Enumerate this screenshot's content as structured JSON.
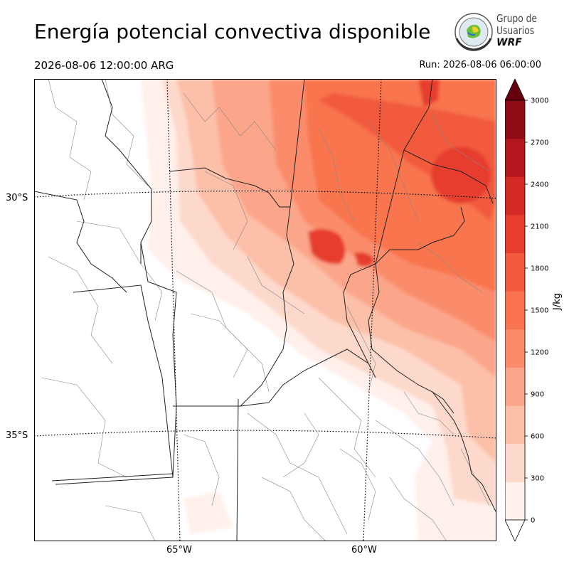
{
  "header": {
    "title": "Energía potencial convectiva disponible",
    "valid_time": "2026-08-06 12:00:00 ARG",
    "run_time": "Run: 2026-08-06 06:00:00"
  },
  "logo": {
    "line1": "Grupo de",
    "line2": "Usuarios",
    "line3": "WRF"
  },
  "map": {
    "lat_labels": [
      "30°S",
      "35°S"
    ],
    "lon_labels": [
      "65°W",
      "60°W"
    ],
    "gridlines": "dotted"
  },
  "colorbar": {
    "unit": "J/kg",
    "ticks": [
      "0",
      "300",
      "600",
      "900",
      "1200",
      "1500",
      "1800",
      "2100",
      "2400",
      "2700",
      "3000"
    ],
    "levels": [
      0,
      150,
      300,
      450,
      600,
      750,
      900,
      1050,
      1200,
      1350,
      1500,
      1650,
      1800,
      1950,
      2100,
      2250,
      2400,
      2550,
      2700,
      2850,
      3000
    ],
    "colors": [
      "#fff0eb",
      "#fdd9cc",
      "#fcbfa8",
      "#fba68a",
      "#fa8c6c",
      "#f8744e",
      "#f25a3d",
      "#e63e2e",
      "#d42a25",
      "#b3171d",
      "#8c0b14"
    ],
    "extend": "both"
  }
}
